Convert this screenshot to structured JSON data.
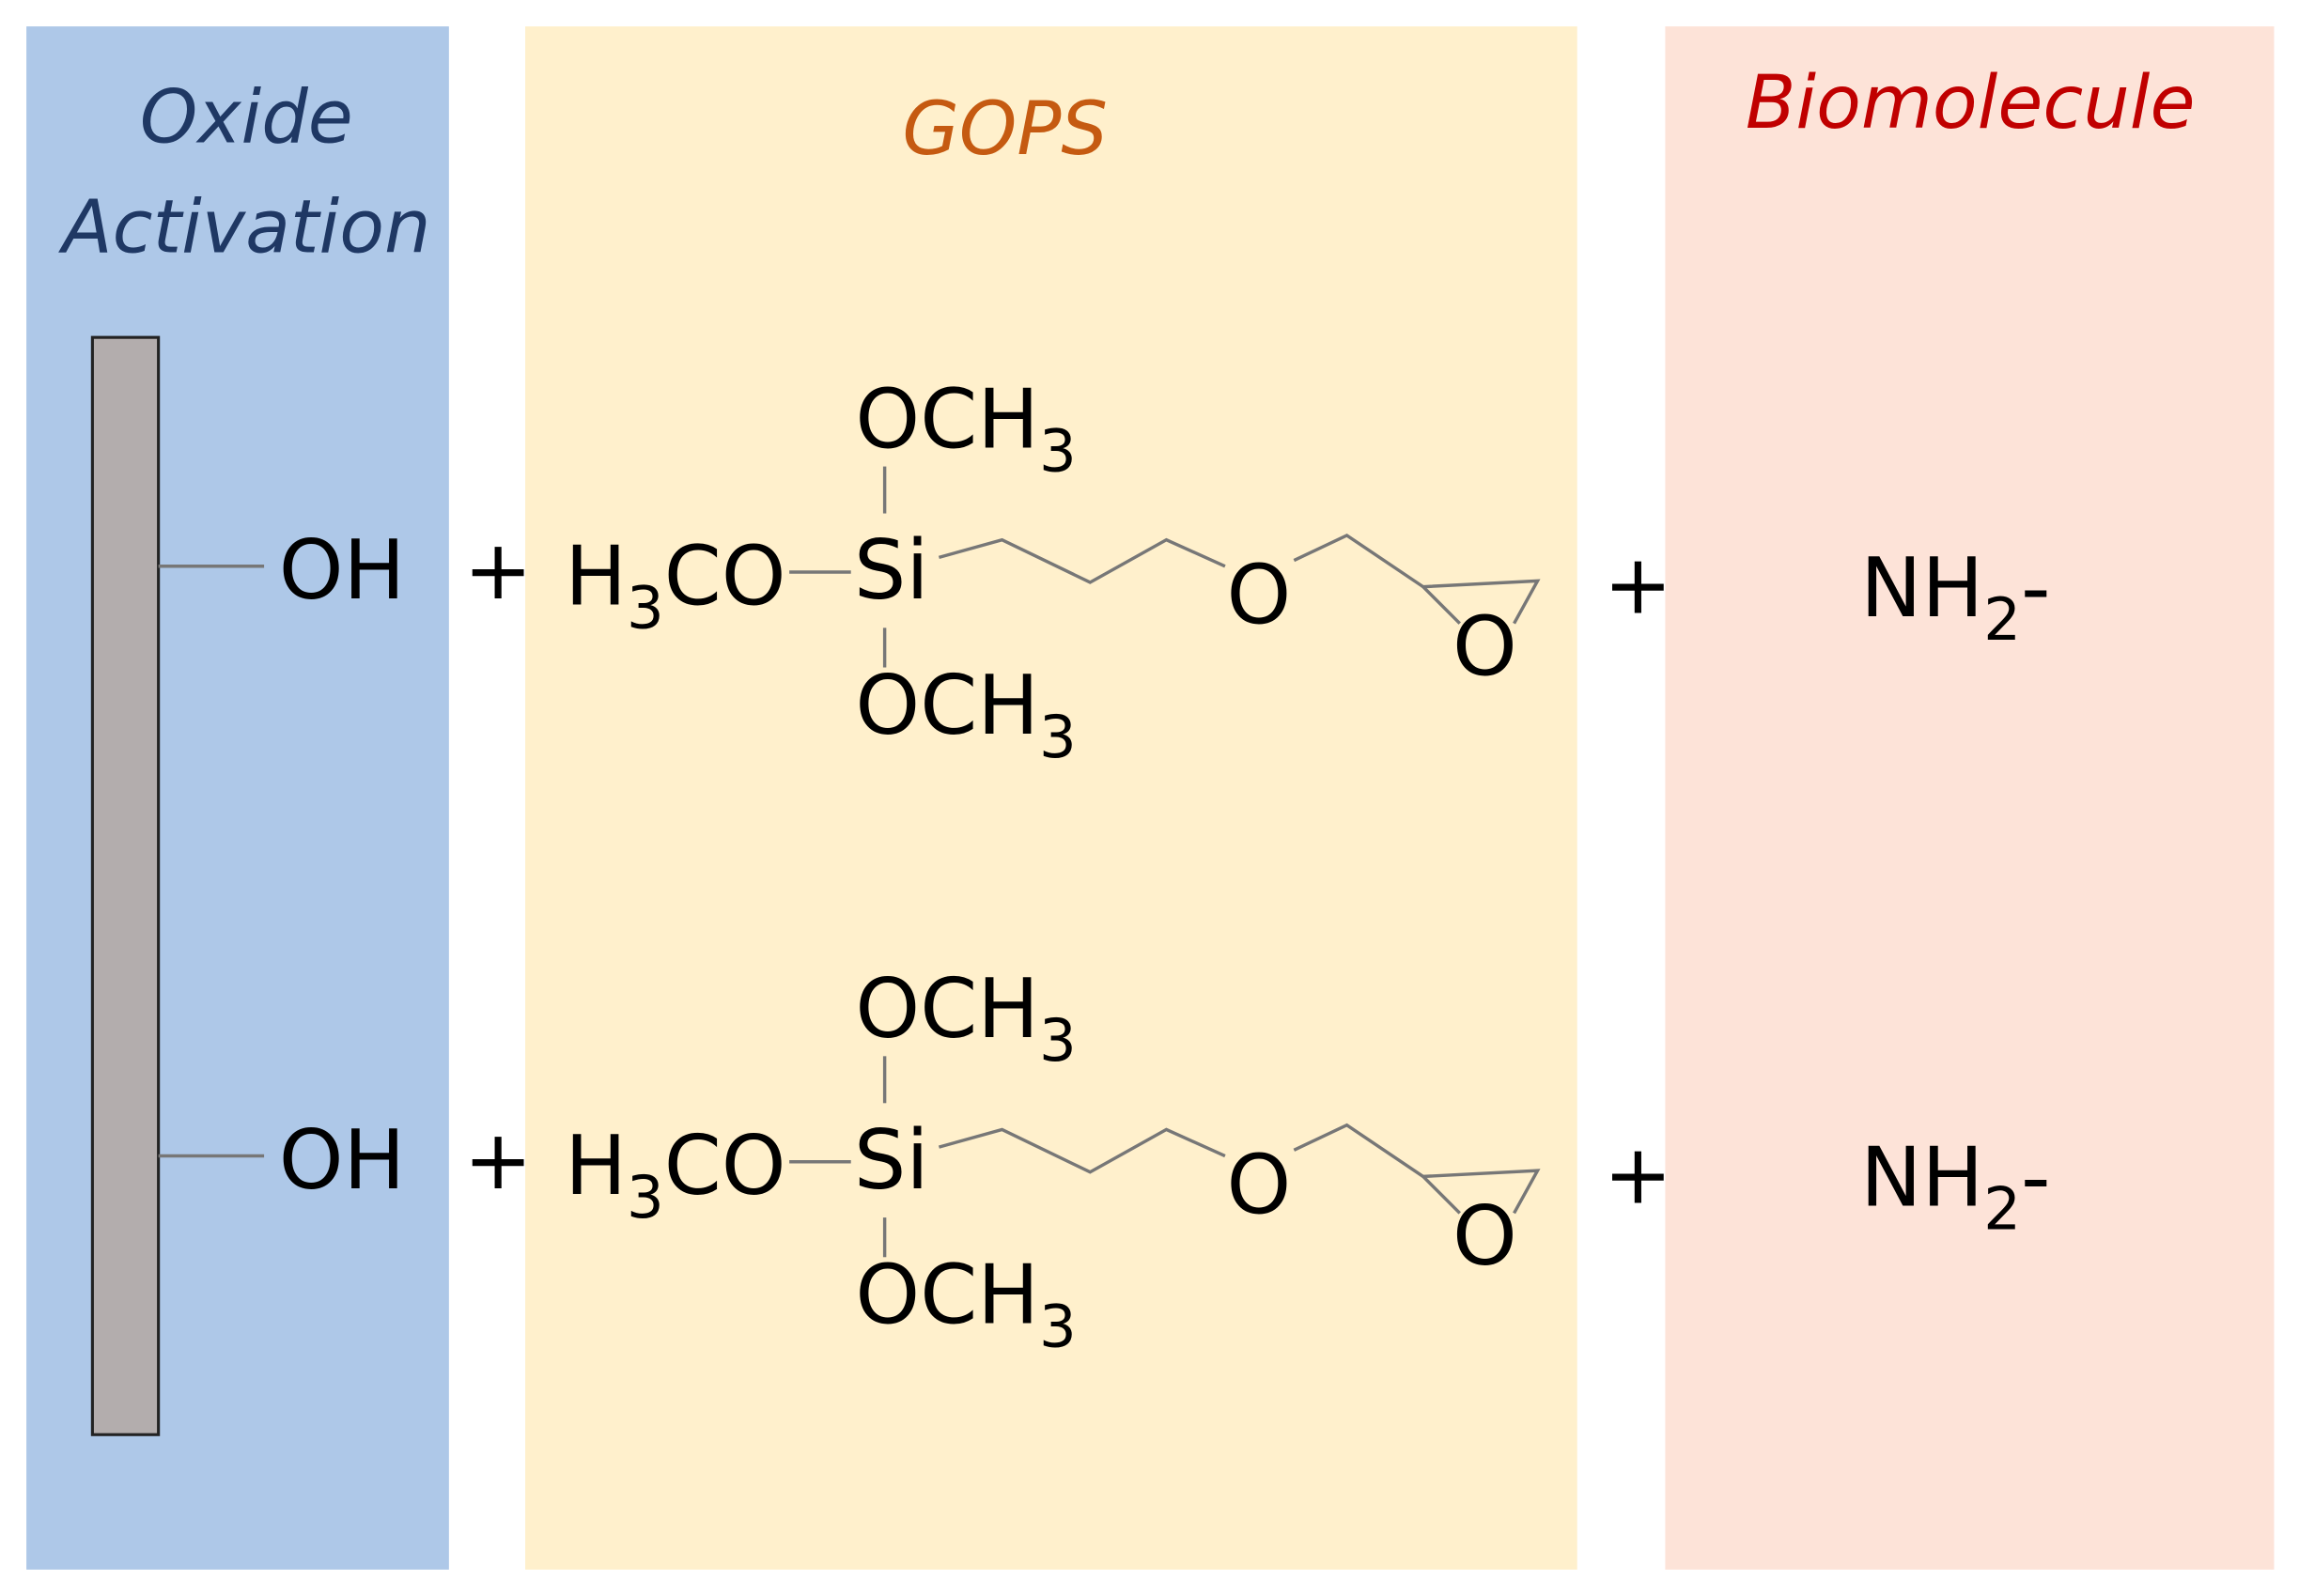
{
  "panels": [
    {
      "title": [
        "Oxide",
        "Activation"
      ]
    },
    {
      "title": "GOPS"
    },
    {
      "title": "Biomolecule"
    }
  ],
  "rows": [
    {
      "surface_group": "OH",
      "plus_1": "+",
      "reagent": {
        "top": {
          "main": "OCH",
          "sub": "3"
        },
        "left": {
          "pre": "H",
          "sub": "3",
          "post": "CO"
        },
        "center": "Si",
        "bottom": {
          "main": "OCH",
          "sub": "3"
        },
        "ether_oxygen": "O",
        "epoxide_oxygen": "O"
      },
      "plus_2": "+",
      "amine": {
        "main": "NH",
        "sub": "2",
        "post": "-"
      }
    },
    {
      "surface_group": "OH",
      "plus_1": "+",
      "reagent": {
        "top": {
          "main": "OCH",
          "sub": "3"
        },
        "left": {
          "pre": "H",
          "sub": "3",
          "post": "CO"
        },
        "center": "Si",
        "bottom": {
          "main": "OCH",
          "sub": "3"
        },
        "ether_oxygen": "O",
        "epoxide_oxygen": "O"
      },
      "plus_2": "+",
      "amine": {
        "main": "NH",
        "sub": "2",
        "post": "-"
      }
    }
  ]
}
